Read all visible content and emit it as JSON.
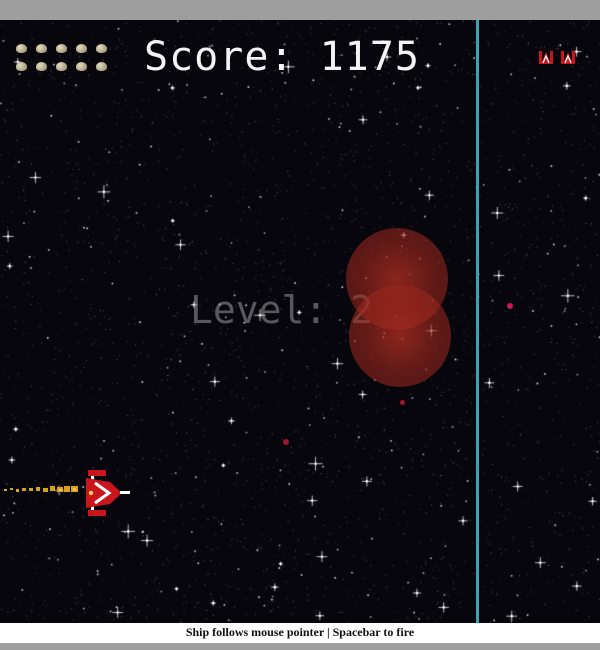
{
  "hud": {
    "score_label": "Score:",
    "score_value": "1175",
    "ammo_icon": "rock-ammo-icon",
    "ammo_count": 10,
    "lives_icon": "red-fighter-ship-icon",
    "lives_count": 2
  },
  "level": {
    "label": "Level:",
    "value": "2"
  },
  "game": {
    "background_color": "#07060d",
    "divider_color": "#3aa2b0",
    "explosion_color": "#b02e22",
    "enemy_color": "#d1145a",
    "player_ship_color": "#c8161c"
  },
  "footer": {
    "instructions": "Ship follows mouse pointer | Spacebar to fire"
  }
}
